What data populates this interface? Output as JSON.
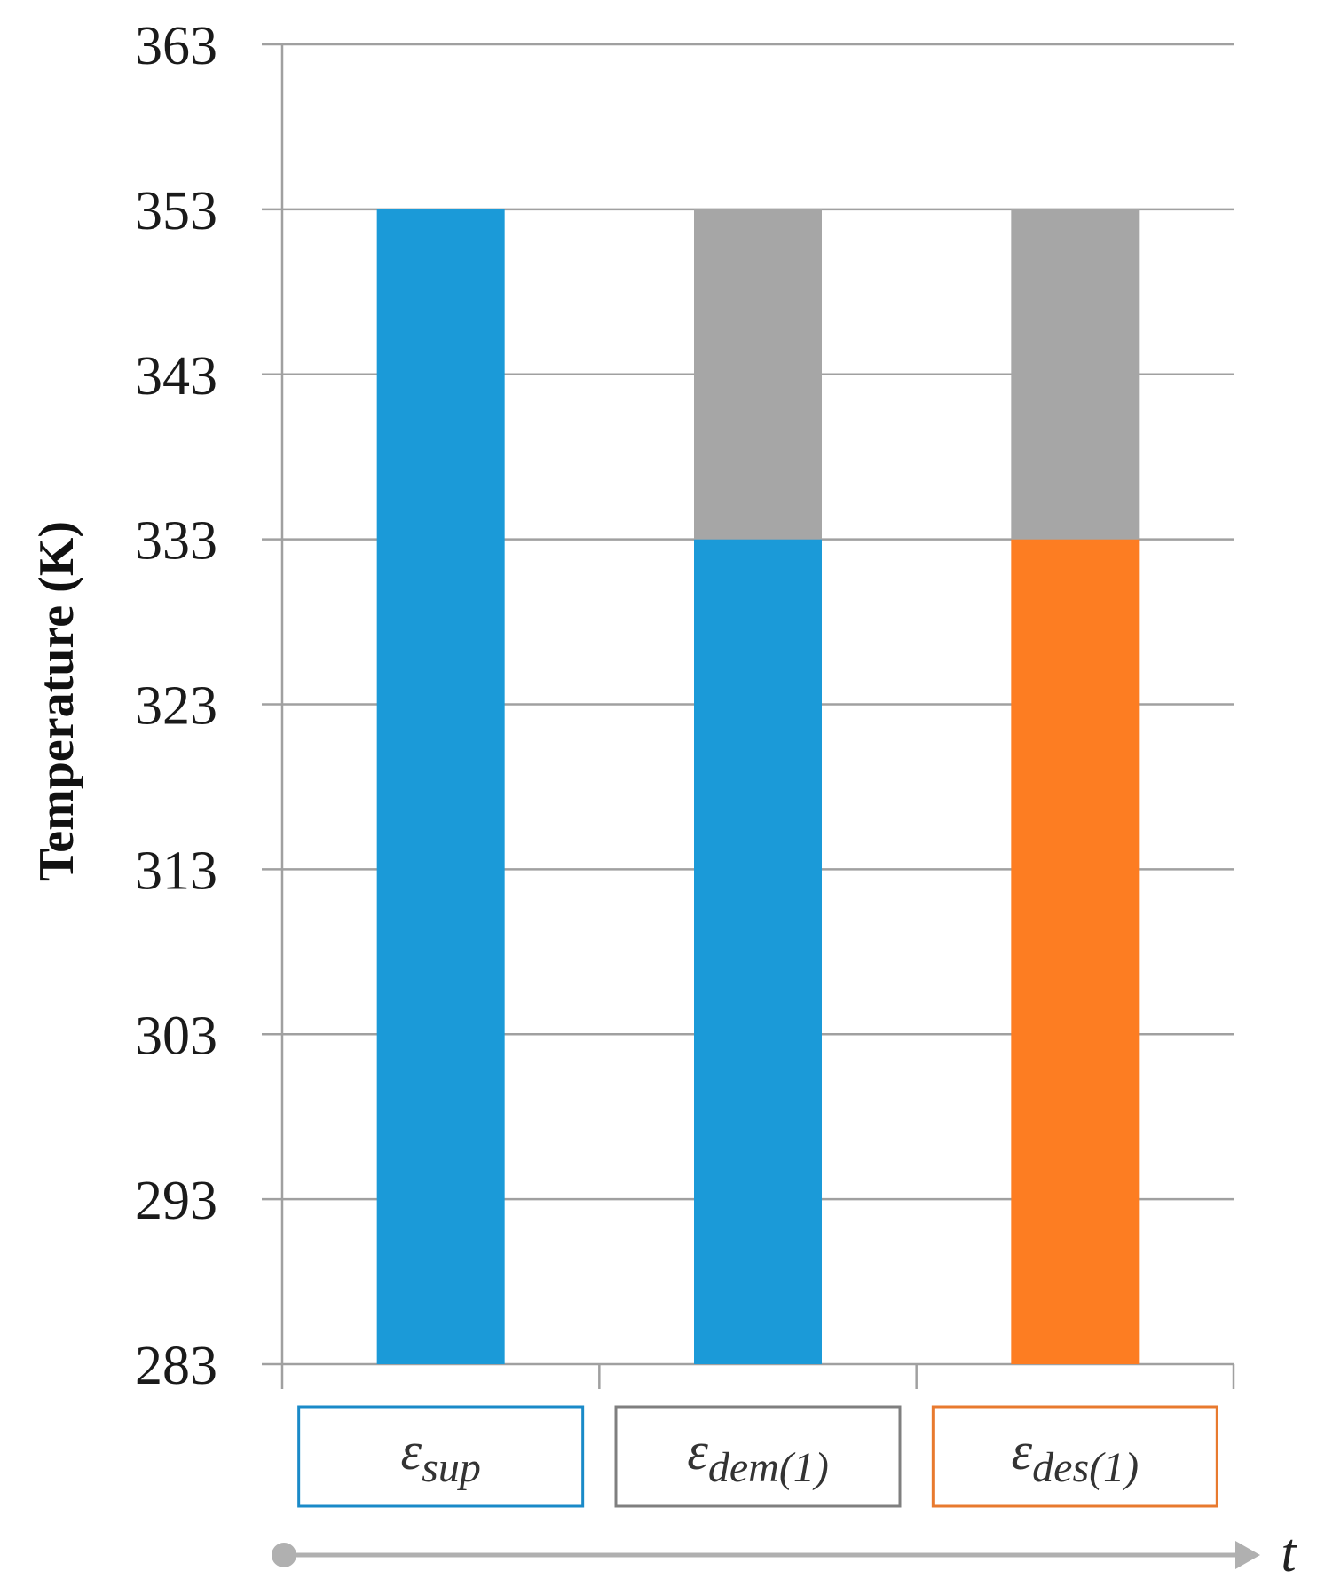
{
  "chart_data": {
    "type": "bar",
    "stacked": true,
    "ylabel": "Temperature (K)",
    "ylim": [
      283,
      363
    ],
    "yticks": [
      283,
      293,
      303,
      313,
      323,
      333,
      343,
      353,
      363
    ],
    "grid": true,
    "categories": [
      {
        "symbol": "ε",
        "subscript": "sup",
        "border_color": "#1a8ac8"
      },
      {
        "symbol": "ε",
        "subscript": "dem(1)",
        "border_color": "#7f7f7f"
      },
      {
        "symbol": "ε",
        "subscript": "des(1)",
        "border_color": "#e87a2f"
      }
    ],
    "bars": [
      {
        "segments": [
          {
            "from": 283,
            "to": 353,
            "color": "#1b9ad8"
          }
        ]
      },
      {
        "segments": [
          {
            "from": 283,
            "to": 333,
            "color": "#1b9ad8"
          },
          {
            "from": 333,
            "to": 353,
            "color": "#a6a6a6"
          }
        ]
      },
      {
        "segments": [
          {
            "from": 283,
            "to": 333,
            "color": "#fd7d22"
          },
          {
            "from": 333,
            "to": 353,
            "color": "#a6a6a6"
          }
        ]
      }
    ],
    "time_axis_label": "t",
    "colors": {
      "grid": "#a0a0a0",
      "arrow": "#b0b0b0"
    }
  }
}
